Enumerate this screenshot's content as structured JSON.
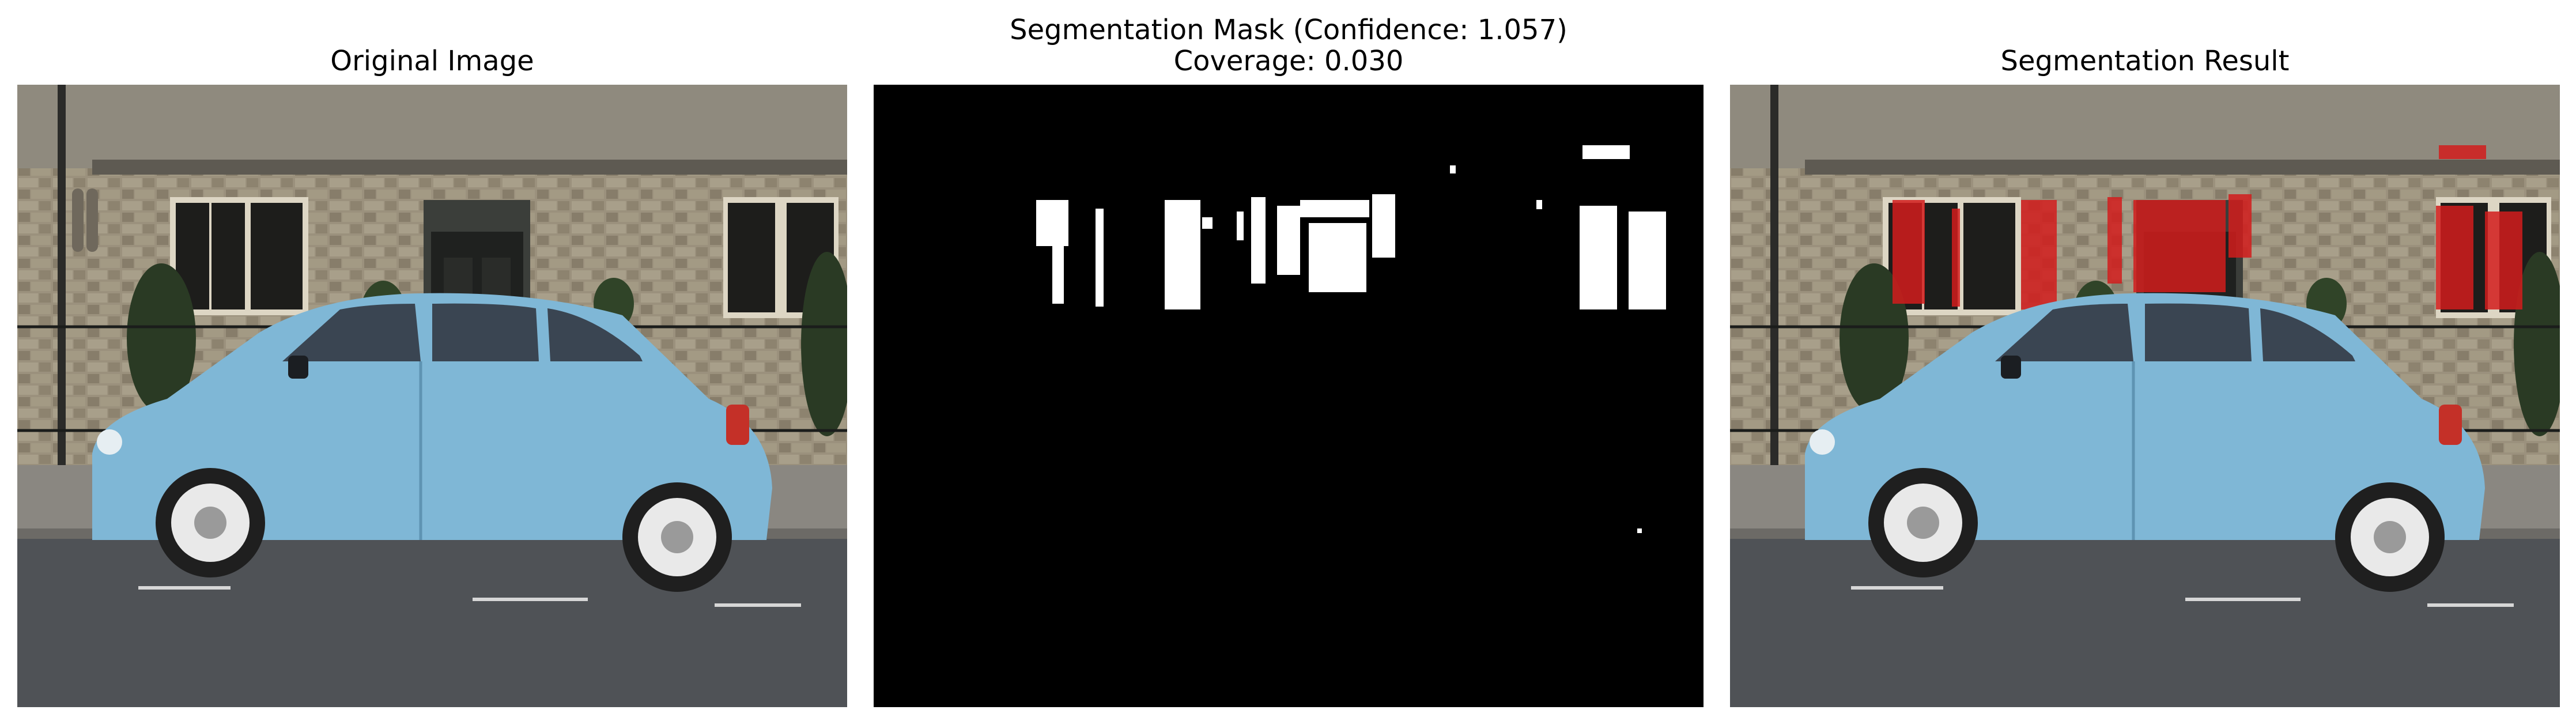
{
  "panels": [
    {
      "title": "Original Image"
    },
    {
      "title_line1": "Segmentation Mask (Confidence: 1.057)",
      "title_line2": "Coverage: 0.030"
    },
    {
      "title": "Segmentation Result"
    }
  ],
  "colors": {
    "car_body": "#7fb7d6",
    "car_shadow": "#5e93b2",
    "stone_wall": "#9a907c",
    "window_dark": "#1d1d1b",
    "road": "#4f5256",
    "sidewalk": "#8a8781",
    "hedge": "#2a3a24",
    "mask_bg": "#000000",
    "mask_fg": "#ffffff",
    "overlay_red": "#d21c1c"
  },
  "icons": [
    "car-photo",
    "mask-blobs",
    "red-overlay"
  ]
}
